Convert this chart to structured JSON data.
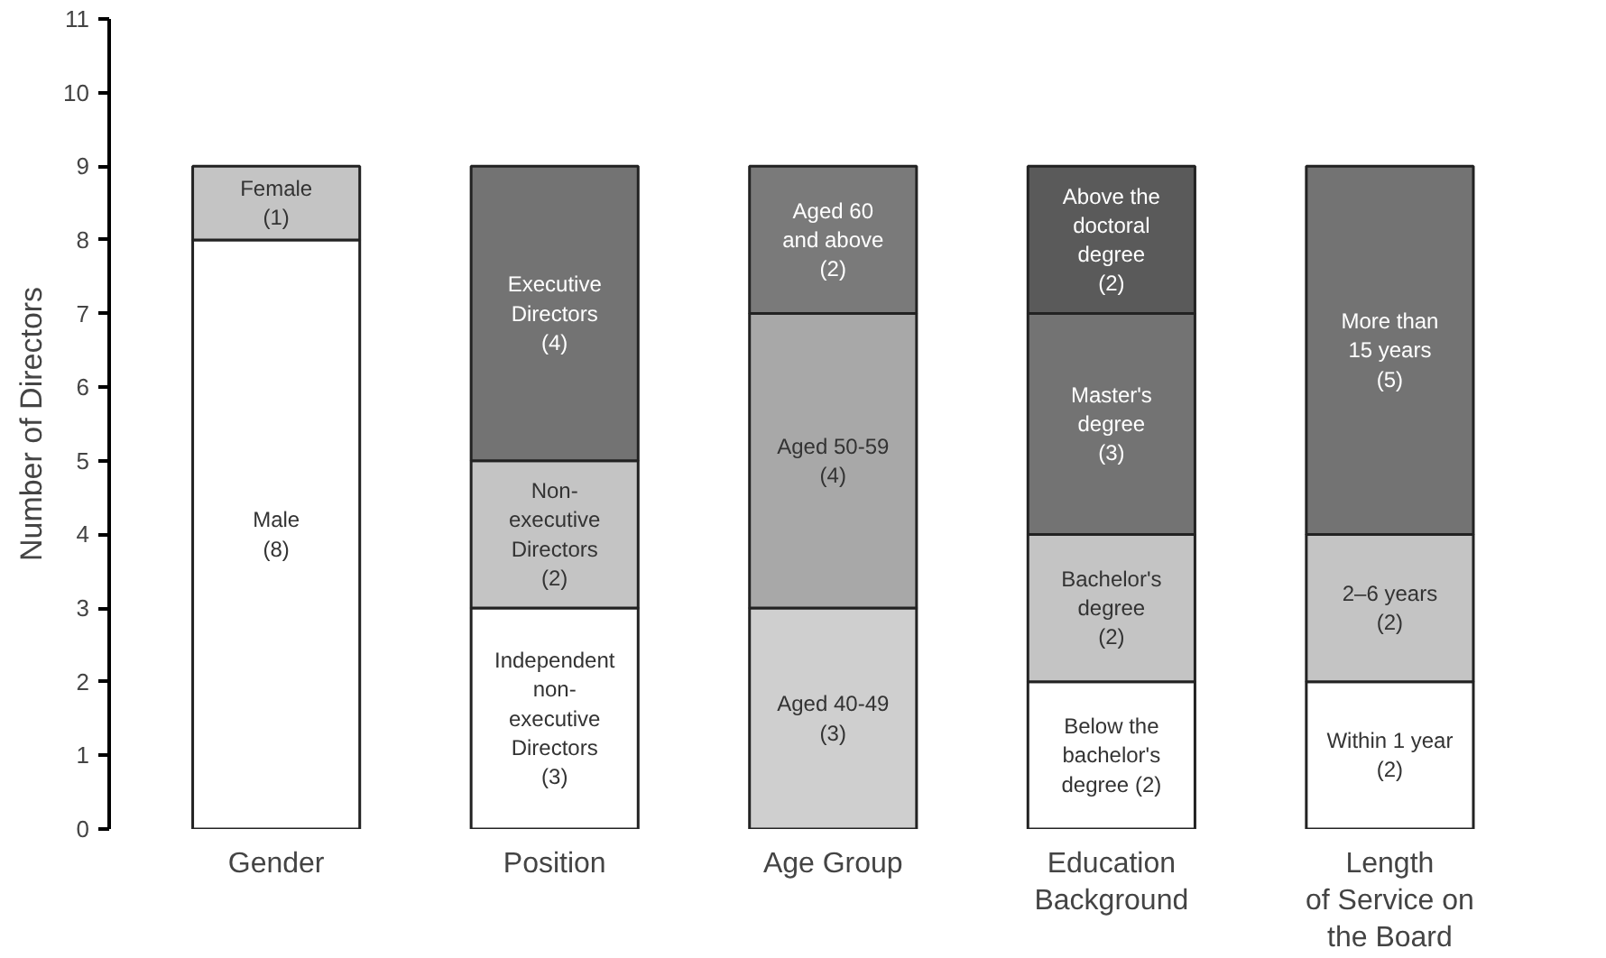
{
  "chart_data": {
    "type": "bar",
    "stacked": true,
    "ylabel": "Number of Directors",
    "categories": [
      "Gender",
      "Position",
      "Age Group",
      "Education\nBackground",
      "Length\nof Service on\nthe Board"
    ],
    "ylim": [
      0,
      11
    ],
    "yticks": [
      0,
      1,
      2,
      3,
      4,
      5,
      6,
      7,
      8,
      9,
      10,
      11
    ],
    "grid": false,
    "series": [
      {
        "values": [
          8,
          3,
          3,
          2,
          2
        ],
        "colors": [
          "#ffffff",
          "#ffffff",
          "#cfcfcf",
          "#ffffff",
          "#ffffff"
        ],
        "value_labels": [
          "Male\n(8)",
          "Independent\nnon-\nexecutive\nDirectors\n(3)",
          "Aged 40-49\n(3)",
          "Below the\nbachelor's\ndegree (2)",
          "Within 1 year\n(2)"
        ]
      },
      {
        "values": [
          1,
          2,
          4,
          2,
          2
        ],
        "colors": [
          "#c4c4c4",
          "#c4c4c4",
          "#a8a8a8",
          "#c4c4c4",
          "#c4c4c4"
        ],
        "value_labels": [
          "Female\n(1)",
          "Non-\nexecutive\nDirectors\n(2)",
          "Aged 50-59\n(4)",
          "Bachelor's\ndegree\n(2)",
          "2–6 years\n(2)"
        ]
      },
      {
        "values": [
          null,
          4,
          2,
          3,
          5
        ],
        "colors": [
          null,
          "#737373",
          "#7a7a7a",
          "#737373",
          "#737373"
        ],
        "value_labels": [
          null,
          "Executive\nDirectors\n(4)",
          "Aged 60\nand above\n(2)",
          "Master's\ndegree\n(3)",
          "More than\n15 years\n(5)"
        ]
      },
      {
        "values": [
          null,
          null,
          null,
          2,
          null
        ],
        "colors": [
          null,
          null,
          null,
          "#5a5a5a",
          null
        ],
        "value_labels": [
          null,
          null,
          null,
          "Above the\ndoctoral\ndegree\n(2)",
          null
        ]
      }
    ]
  }
}
